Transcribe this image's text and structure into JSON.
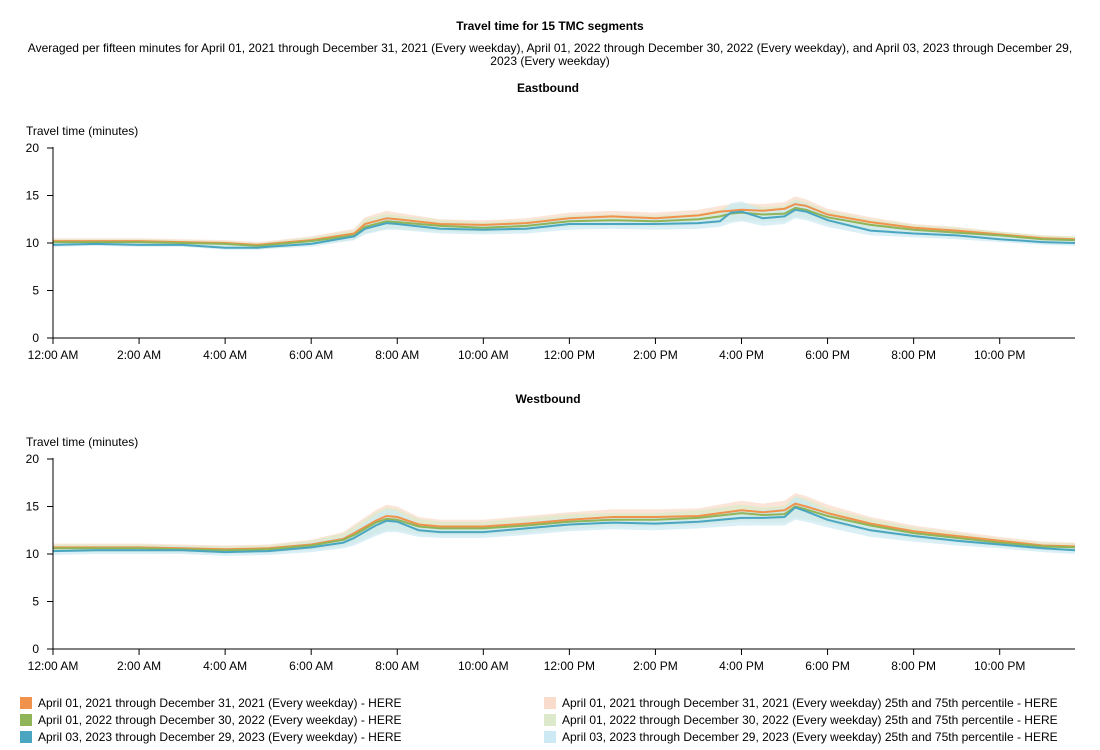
{
  "title": "Travel time for 15 TMC segments",
  "subtitle": "Averaged per fifteen minutes for April 01, 2021 through December 31, 2021 (Every weekday), April 01, 2022 through December 30, 2022 (Every weekday), and April 03, 2023 through December 29, 2023 (Every weekday)",
  "colors": {
    "s2021": "#f0924c",
    "s2022": "#8fb558",
    "s2023": "#4aa6c0",
    "band2021": "#f9dccb",
    "band2022": "#dce9ca",
    "band2023": "#cde9f3"
  },
  "legend": [
    {
      "label": "April 01, 2021 through December 31, 2021 (Every weekday) - HERE",
      "color": "#f0924c"
    },
    {
      "label": "April 01, 2022 through December 30, 2022 (Every weekday) - HERE",
      "color": "#8fb558"
    },
    {
      "label": "April 03, 2023 through December 29, 2023 (Every weekday) - HERE",
      "color": "#4aa6c0"
    },
    {
      "label": "April 01, 2021 through December 31, 2021 (Every weekday) 25th and 75th percentile - HERE",
      "color": "#f9dccb"
    },
    {
      "label": "April 01, 2022 through December 30, 2022 (Every weekday) 25th and 75th percentile - HERE",
      "color": "#dce9ca"
    },
    {
      "label": "April 03, 2023 through December 29, 2023 (Every weekday) 25th and 75th percentile - HERE",
      "color": "#cde9f3"
    }
  ],
  "chart_data": [
    {
      "type": "line",
      "title": "Eastbound",
      "ylabel": "Travel time (minutes)",
      "ylim": [
        0,
        20
      ],
      "yticks": [
        0,
        5,
        10,
        15,
        20
      ],
      "xlim": [
        "12:00 AM",
        "11:45 PM"
      ],
      "xtick_labels": [
        "12:00 AM",
        "2:00 AM",
        "4:00 AM",
        "6:00 AM",
        "8:00 AM",
        "10:00 AM",
        "12:00 PM",
        "2:00 PM",
        "4:00 PM",
        "6:00 PM",
        "8:00 PM",
        "10:00 PM"
      ],
      "x": [
        "12:00 AM",
        "1:00 AM",
        "2:00 AM",
        "3:00 AM",
        "4:00 AM",
        "4:45 AM",
        "5:00 AM",
        "6:00 AM",
        "7:00 AM",
        "7:15 AM",
        "7:45 AM",
        "8:00 AM",
        "9:00 AM",
        "10:00 AM",
        "11:00 AM",
        "12:00 PM",
        "1:00 PM",
        "2:00 PM",
        "3:00 PM",
        "3:30 PM",
        "3:45 PM",
        "4:00 PM",
        "4:30 PM",
        "5:00 PM",
        "5:15 PM",
        "5:30 PM",
        "6:00 PM",
        "7:00 PM",
        "8:00 PM",
        "9:00 PM",
        "10:00 PM",
        "11:00 PM",
        "11:45 PM"
      ],
      "series": [
        {
          "name": "April 01, 2021 through December 31, 2021 (Every weekday) - HERE",
          "values": [
            10.2,
            10.2,
            10.2,
            10.1,
            10.0,
            9.8,
            9.9,
            10.3,
            11.0,
            12.0,
            12.6,
            12.5,
            12.0,
            11.9,
            12.1,
            12.6,
            12.8,
            12.6,
            12.9,
            13.3,
            13.4,
            13.5,
            13.4,
            13.6,
            14.1,
            13.9,
            13.0,
            12.2,
            11.6,
            11.3,
            10.9,
            10.5,
            10.4
          ]
        },
        {
          "name": "April 01, 2022 through December 30, 2022 (Every weekday) - HERE",
          "values": [
            10.1,
            10.1,
            10.1,
            10.0,
            9.9,
            9.7,
            9.8,
            10.2,
            10.8,
            11.7,
            12.3,
            12.2,
            11.8,
            11.6,
            11.8,
            12.3,
            12.4,
            12.3,
            12.5,
            12.8,
            13.1,
            13.2,
            13.0,
            13.1,
            13.7,
            13.5,
            12.7,
            11.9,
            11.4,
            11.1,
            10.8,
            10.4,
            10.3
          ]
        },
        {
          "name": "April 03, 2023 through December 29, 2023 (Every weekday) - HERE",
          "values": [
            9.8,
            9.9,
            9.8,
            9.8,
            9.5,
            9.5,
            9.6,
            9.9,
            10.7,
            11.5,
            12.1,
            12.0,
            11.5,
            11.4,
            11.5,
            12.0,
            12.0,
            12.0,
            12.1,
            12.3,
            13.2,
            13.3,
            12.6,
            12.8,
            13.5,
            13.3,
            12.4,
            11.3,
            11.0,
            10.8,
            10.4,
            10.1,
            10.0
          ]
        }
      ],
      "bands": [
        {
          "label": "April 01, 2021 through December 31, 2021 (Every weekday) 25th and 75th percentile - HERE",
          "low": [
            9.9,
            9.9,
            9.9,
            9.8,
            9.6,
            9.4,
            9.5,
            9.9,
            10.5,
            11.4,
            11.9,
            11.9,
            11.5,
            11.4,
            11.6,
            12.0,
            12.2,
            12.0,
            12.3,
            12.6,
            12.8,
            12.9,
            12.7,
            12.9,
            13.3,
            13.2,
            12.4,
            11.7,
            11.2,
            10.9,
            10.6,
            10.2,
            10.1
          ],
          "high": [
            10.5,
            10.5,
            10.5,
            10.4,
            10.3,
            10.1,
            10.2,
            10.7,
            11.5,
            12.7,
            13.4,
            13.2,
            12.5,
            12.4,
            12.6,
            13.2,
            13.4,
            13.2,
            13.5,
            13.9,
            14.1,
            14.2,
            14.1,
            14.3,
            14.9,
            14.6,
            13.6,
            12.7,
            12.0,
            11.7,
            11.2,
            10.8,
            10.7
          ]
        },
        {
          "label": "April 01, 2022 through December 30, 2022 (Every weekday) 25th and 75th percentile - HERE",
          "low": [
            9.8,
            9.8,
            9.8,
            9.7,
            9.5,
            9.3,
            9.4,
            9.8,
            10.3,
            11.0,
            11.5,
            11.5,
            11.2,
            11.1,
            11.3,
            11.7,
            11.8,
            11.7,
            11.9,
            12.1,
            12.3,
            12.4,
            12.2,
            12.3,
            12.8,
            12.6,
            12.0,
            11.3,
            10.9,
            10.6,
            10.4,
            10.0,
            9.9
          ],
          "high": [
            10.4,
            10.4,
            10.4,
            10.3,
            10.2,
            10.0,
            10.1,
            10.6,
            11.3,
            12.5,
            13.1,
            12.9,
            12.4,
            12.2,
            12.4,
            12.9,
            13.0,
            12.9,
            13.1,
            13.5,
            14.0,
            14.2,
            13.8,
            13.9,
            14.6,
            14.3,
            13.4,
            12.5,
            11.9,
            11.6,
            11.2,
            10.8,
            10.7
          ]
        },
        {
          "label": "April 03, 2023 through December 29, 2023 (Every weekday) 25th and 75th percentile - HERE",
          "low": [
            9.6,
            9.7,
            9.6,
            9.6,
            9.3,
            9.3,
            9.4,
            9.6,
            10.3,
            10.9,
            11.4,
            11.4,
            11.0,
            10.9,
            11.0,
            11.4,
            11.5,
            11.4,
            11.5,
            11.7,
            12.1,
            12.3,
            11.8,
            12.0,
            12.6,
            12.4,
            11.7,
            10.8,
            10.6,
            10.4,
            10.1,
            9.8,
            9.7
          ],
          "high": [
            10.0,
            10.1,
            10.0,
            10.0,
            9.8,
            9.7,
            9.8,
            10.2,
            11.1,
            12.1,
            12.8,
            12.6,
            12.0,
            11.9,
            12.0,
            12.6,
            12.6,
            12.6,
            12.7,
            13.0,
            14.2,
            14.4,
            13.4,
            13.6,
            14.4,
            14.1,
            13.1,
            11.8,
            11.4,
            11.2,
            10.8,
            10.4,
            10.3
          ]
        }
      ]
    },
    {
      "type": "line",
      "title": "Westbound",
      "ylabel": "Travel time (minutes)",
      "ylim": [
        0,
        20
      ],
      "yticks": [
        0,
        5,
        10,
        15,
        20
      ],
      "xlim": [
        "12:00 AM",
        "11:45 PM"
      ],
      "xtick_labels": [
        "12:00 AM",
        "2:00 AM",
        "4:00 AM",
        "6:00 AM",
        "8:00 AM",
        "10:00 AM",
        "12:00 PM",
        "2:00 PM",
        "4:00 PM",
        "6:00 PM",
        "8:00 PM",
        "10:00 PM"
      ],
      "x": [
        "12:00 AM",
        "1:00 AM",
        "2:00 AM",
        "3:00 AM",
        "4:00 AM",
        "5:00 AM",
        "6:00 AM",
        "6:45 AM",
        "7:00 AM",
        "7:30 AM",
        "7:45 AM",
        "8:00 AM",
        "8:30 AM",
        "9:00 AM",
        "10:00 AM",
        "11:00 AM",
        "12:00 PM",
        "1:00 PM",
        "2:00 PM",
        "3:00 PM",
        "4:00 PM",
        "4:30 PM",
        "5:00 PM",
        "5:15 PM",
        "5:30 PM",
        "6:00 PM",
        "7:00 PM",
        "8:00 PM",
        "9:00 PM",
        "10:00 PM",
        "11:00 PM",
        "11:45 PM"
      ],
      "series": [
        {
          "name": "April 01, 2021 through December 31, 2021 (Every weekday) - HERE",
          "values": [
            10.7,
            10.7,
            10.7,
            10.6,
            10.5,
            10.6,
            11.0,
            11.6,
            12.2,
            13.5,
            14.0,
            13.9,
            13.1,
            12.9,
            12.9,
            13.2,
            13.6,
            13.9,
            13.9,
            14.0,
            14.6,
            14.4,
            14.6,
            15.3,
            15.0,
            14.3,
            13.2,
            12.4,
            11.9,
            11.4,
            10.9,
            10.8
          ]
        },
        {
          "name": "April 01, 2022 through December 30, 2022 (Every weekday) - HERE",
          "values": [
            10.6,
            10.6,
            10.6,
            10.5,
            10.4,
            10.5,
            10.9,
            11.5,
            12.0,
            13.3,
            13.7,
            13.6,
            12.9,
            12.7,
            12.7,
            13.0,
            13.4,
            13.6,
            13.6,
            13.8,
            14.3,
            14.1,
            14.2,
            15.0,
            14.7,
            14.0,
            13.0,
            12.2,
            11.7,
            11.2,
            10.8,
            10.7
          ]
        },
        {
          "name": "April 03, 2023 through December 29, 2023 (Every weekday) - HERE",
          "values": [
            10.3,
            10.4,
            10.4,
            10.4,
            10.2,
            10.3,
            10.7,
            11.2,
            11.7,
            13.0,
            13.5,
            13.4,
            12.5,
            12.3,
            12.3,
            12.7,
            13.1,
            13.3,
            13.2,
            13.4,
            13.8,
            13.8,
            13.9,
            14.9,
            14.5,
            13.6,
            12.5,
            11.9,
            11.4,
            11.0,
            10.6,
            10.4
          ]
        }
      ],
      "bands": [
        {
          "label": "April 01, 2021 through December 31, 2021 (Every weekday) 25th and 75th percentile - HERE",
          "low": [
            10.3,
            10.3,
            10.3,
            10.2,
            10.1,
            10.2,
            10.5,
            10.9,
            11.3,
            12.3,
            12.7,
            12.7,
            12.3,
            12.2,
            12.2,
            12.4,
            12.8,
            13.1,
            13.1,
            13.2,
            13.6,
            13.5,
            13.6,
            14.1,
            13.9,
            13.4,
            12.5,
            11.8,
            11.4,
            11.0,
            10.5,
            10.4
          ],
          "high": [
            11.1,
            11.1,
            11.1,
            11.0,
            10.9,
            11.0,
            11.5,
            12.3,
            13.1,
            14.6,
            15.2,
            15.0,
            13.9,
            13.6,
            13.6,
            14.0,
            14.4,
            14.7,
            14.7,
            14.8,
            15.6,
            15.3,
            15.6,
            16.4,
            16.1,
            15.2,
            13.9,
            13.0,
            12.4,
            11.8,
            11.3,
            11.2
          ]
        },
        {
          "label": "April 01, 2022 through December 30, 2022 (Every weekday) 25th and 75th percentile - HERE",
          "low": [
            10.2,
            10.2,
            10.2,
            10.1,
            10.0,
            10.1,
            10.4,
            10.8,
            11.1,
            12.1,
            12.5,
            12.5,
            12.1,
            12.0,
            12.0,
            12.2,
            12.6,
            12.9,
            12.9,
            13.0,
            13.4,
            13.3,
            13.3,
            13.8,
            13.6,
            13.2,
            12.3,
            11.6,
            11.2,
            10.8,
            10.4,
            10.3
          ],
          "high": [
            11.0,
            11.0,
            11.0,
            10.9,
            10.8,
            10.9,
            11.4,
            12.2,
            12.9,
            14.4,
            14.9,
            14.7,
            13.7,
            13.4,
            13.4,
            13.8,
            14.2,
            14.3,
            14.3,
            14.6,
            15.2,
            14.9,
            15.1,
            16.1,
            15.8,
            14.8,
            13.7,
            12.8,
            12.2,
            11.6,
            11.2,
            11.1
          ]
        },
        {
          "label": "April 03, 2023 through December 29, 2023 (Every weekday) 25th and 75th percentile - HERE",
          "low": [
            9.9,
            10.0,
            10.0,
            10.0,
            9.8,
            9.9,
            10.2,
            10.6,
            10.9,
            11.9,
            12.3,
            12.3,
            11.8,
            11.7,
            11.7,
            12.0,
            12.4,
            12.6,
            12.5,
            12.7,
            13.0,
            13.0,
            13.0,
            13.6,
            13.4,
            12.8,
            11.8,
            11.3,
            10.9,
            10.6,
            10.2,
            10.0
          ],
          "high": [
            10.7,
            10.8,
            10.8,
            10.8,
            10.6,
            10.7,
            11.2,
            11.8,
            12.5,
            14.1,
            14.7,
            14.5,
            13.2,
            12.9,
            12.9,
            13.4,
            13.8,
            14.0,
            13.9,
            14.1,
            14.6,
            14.6,
            14.8,
            16.0,
            15.6,
            14.4,
            13.2,
            12.5,
            11.9,
            11.4,
            11.0,
            10.8
          ]
        }
      ]
    }
  ]
}
